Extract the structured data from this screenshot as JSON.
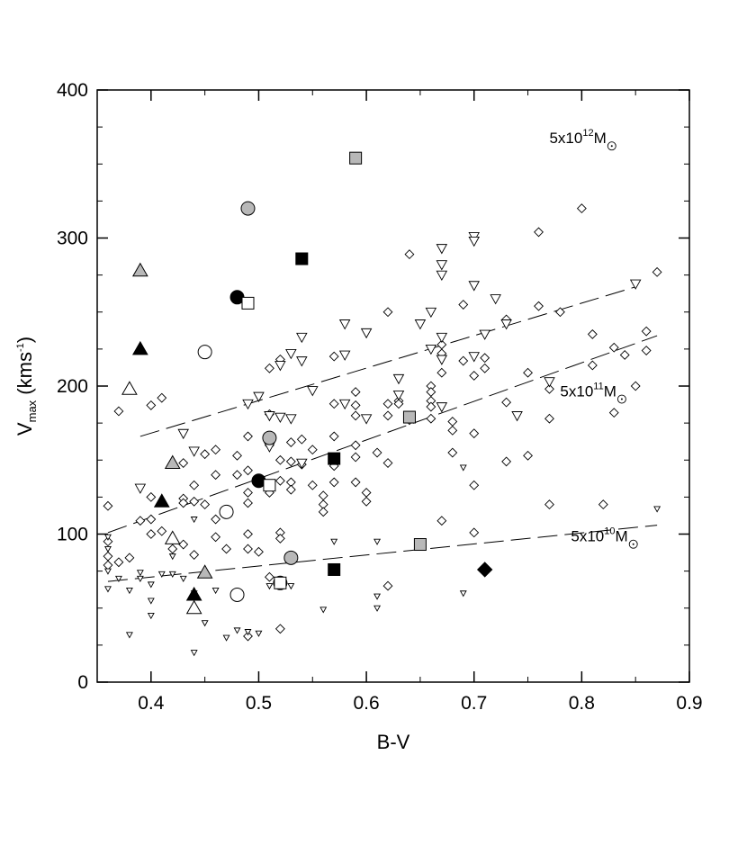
{
  "chart_data": {
    "type": "scatter",
    "xlabel": "B-V",
    "ylabel_main": "V",
    "ylabel_sub": "max",
    "ylabel_unit_pre": " (kms",
    "ylabel_unit_sup": "-1",
    "ylabel_unit_post": ")",
    "xlim": [
      0.35,
      0.9
    ],
    "ylim": [
      0,
      400
    ],
    "xticks": [
      0.4,
      0.5,
      0.6,
      0.7,
      0.8,
      0.9
    ],
    "xtick_labels": [
      "0.4",
      "0.5",
      "0.6",
      "0.7",
      "0.8",
      "0.9"
    ],
    "yticks": [
      0,
      100,
      200,
      300,
      400
    ],
    "ytick_labels": [
      "0",
      "100",
      "200",
      "300",
      "400"
    ],
    "grid": false,
    "annotations": [
      {
        "pre": "5x10",
        "sup": "12",
        "post": "M",
        "x": 0.77,
        "y": 364
      },
      {
        "pre": "5x10",
        "sup": "11",
        "post": "M",
        "x": 0.78,
        "y": 193
      },
      {
        "pre": "5x10",
        "sup": "10",
        "post": "M",
        "x": 0.79,
        "y": 95
      }
    ],
    "lines": [
      {
        "style": "dashed",
        "points": [
          [
            0.39,
            166
          ],
          [
            0.85,
            267
          ]
        ]
      },
      {
        "style": "dashed",
        "points": [
          [
            0.36,
            101
          ],
          [
            0.87,
            234
          ]
        ]
      },
      {
        "style": "dashed",
        "points": [
          [
            0.36,
            68
          ],
          [
            0.87,
            106
          ]
        ]
      }
    ],
    "series": [
      {
        "marker": "diamond-open",
        "points": [
          [
            0.36,
            119
          ],
          [
            0.37,
            183
          ],
          [
            0.36,
            95
          ],
          [
            0.37,
            81
          ],
          [
            0.36,
            79
          ],
          [
            0.36,
            85
          ],
          [
            0.38,
            84
          ],
          [
            0.39,
            109
          ],
          [
            0.4,
            187
          ],
          [
            0.41,
            192
          ],
          [
            0.4,
            125
          ],
          [
            0.4,
            110
          ],
          [
            0.41,
            102
          ],
          [
            0.4,
            100
          ],
          [
            0.42,
            90
          ],
          [
            0.43,
            148
          ],
          [
            0.43,
            124
          ],
          [
            0.43,
            121
          ],
          [
            0.44,
            133
          ],
          [
            0.44,
            122
          ],
          [
            0.43,
            93
          ],
          [
            0.44,
            86
          ],
          [
            0.45,
            154
          ],
          [
            0.46,
            157
          ],
          [
            0.46,
            140
          ],
          [
            0.45,
            120
          ],
          [
            0.46,
            110
          ],
          [
            0.46,
            98
          ],
          [
            0.47,
            90
          ],
          [
            0.48,
            153
          ],
          [
            0.48,
            140
          ],
          [
            0.49,
            166
          ],
          [
            0.49,
            143
          ],
          [
            0.49,
            128
          ],
          [
            0.49,
            121
          ],
          [
            0.49,
            100
          ],
          [
            0.49,
            90
          ],
          [
            0.5,
            88
          ],
          [
            0.49,
            31
          ],
          [
            0.51,
            212
          ],
          [
            0.52,
            218
          ],
          [
            0.51,
            181
          ],
          [
            0.51,
            160
          ],
          [
            0.52,
            150
          ],
          [
            0.52,
            136
          ],
          [
            0.51,
            128
          ],
          [
            0.52,
            101
          ],
          [
            0.52,
            97
          ],
          [
            0.51,
            71
          ],
          [
            0.52,
            36
          ],
          [
            0.53,
            162
          ],
          [
            0.53,
            149
          ],
          [
            0.53,
            135
          ],
          [
            0.53,
            130
          ],
          [
            0.54,
            164
          ],
          [
            0.54,
            147
          ],
          [
            0.55,
            157
          ],
          [
            0.55,
            133
          ],
          [
            0.56,
            126
          ],
          [
            0.56,
            120
          ],
          [
            0.56,
            115
          ],
          [
            0.57,
            220
          ],
          [
            0.57,
            188
          ],
          [
            0.57,
            166
          ],
          [
            0.57,
            146
          ],
          [
            0.57,
            135
          ],
          [
            0.59,
            196
          ],
          [
            0.59,
            187
          ],
          [
            0.59,
            180
          ],
          [
            0.59,
            160
          ],
          [
            0.59,
            152
          ],
          [
            0.59,
            135
          ],
          [
            0.6,
            128
          ],
          [
            0.6,
            122
          ],
          [
            0.61,
            155
          ],
          [
            0.62,
            250
          ],
          [
            0.62,
            188
          ],
          [
            0.62,
            180
          ],
          [
            0.62,
            148
          ],
          [
            0.62,
            65
          ],
          [
            0.63,
            190
          ],
          [
            0.63,
            188
          ],
          [
            0.64,
            289
          ],
          [
            0.64,
            177
          ],
          [
            0.66,
            200
          ],
          [
            0.66,
            196
          ],
          [
            0.66,
            190
          ],
          [
            0.66,
            186
          ],
          [
            0.66,
            178
          ],
          [
            0.67,
            228
          ],
          [
            0.67,
            222
          ],
          [
            0.67,
            209
          ],
          [
            0.67,
            109
          ],
          [
            0.68,
            176
          ],
          [
            0.68,
            170
          ],
          [
            0.68,
            155
          ],
          [
            0.69,
            255
          ],
          [
            0.69,
            217
          ],
          [
            0.7,
            207
          ],
          [
            0.7,
            168
          ],
          [
            0.7,
            133
          ],
          [
            0.7,
            101
          ],
          [
            0.71,
            219
          ],
          [
            0.71,
            212
          ],
          [
            0.73,
            245
          ],
          [
            0.73,
            189
          ],
          [
            0.73,
            149
          ],
          [
            0.75,
            209
          ],
          [
            0.75,
            153
          ],
          [
            0.76,
            304
          ],
          [
            0.76,
            254
          ],
          [
            0.77,
            198
          ],
          [
            0.77,
            178
          ],
          [
            0.77,
            120
          ],
          [
            0.78,
            250
          ],
          [
            0.8,
            320
          ],
          [
            0.81,
            235
          ],
          [
            0.81,
            214
          ],
          [
            0.82,
            120
          ],
          [
            0.83,
            226
          ],
          [
            0.83,
            182
          ],
          [
            0.84,
            221
          ],
          [
            0.85,
            200
          ],
          [
            0.86,
            237
          ],
          [
            0.86,
            224
          ],
          [
            0.87,
            277
          ]
        ]
      },
      {
        "marker": "triangle-down-small",
        "points": [
          [
            0.36,
            98
          ],
          [
            0.36,
            90
          ],
          [
            0.36,
            75
          ],
          [
            0.36,
            63
          ],
          [
            0.37,
            70
          ],
          [
            0.38,
            32
          ],
          [
            0.38,
            62
          ],
          [
            0.39,
            74
          ],
          [
            0.39,
            70
          ],
          [
            0.4,
            66
          ],
          [
            0.4,
            55
          ],
          [
            0.4,
            45
          ],
          [
            0.41,
            73
          ],
          [
            0.42,
            85
          ],
          [
            0.42,
            73
          ],
          [
            0.43,
            70
          ],
          [
            0.44,
            110
          ],
          [
            0.44,
            60
          ],
          [
            0.44,
            20
          ],
          [
            0.45,
            40
          ],
          [
            0.46,
            62
          ],
          [
            0.47,
            30
          ],
          [
            0.48,
            35
          ],
          [
            0.49,
            34
          ],
          [
            0.5,
            33
          ],
          [
            0.51,
            65
          ],
          [
            0.53,
            65
          ],
          [
            0.56,
            49
          ],
          [
            0.57,
            95
          ],
          [
            0.61,
            95
          ],
          [
            0.61,
            58
          ],
          [
            0.61,
            50
          ],
          [
            0.69,
            60
          ],
          [
            0.69,
            145
          ],
          [
            0.87,
            117
          ]
        ]
      },
      {
        "marker": "triangle-down-large",
        "points": [
          [
            0.39,
            131
          ],
          [
            0.43,
            168
          ],
          [
            0.44,
            156
          ],
          [
            0.49,
            188
          ],
          [
            0.5,
            193
          ],
          [
            0.51,
            180
          ],
          [
            0.51,
            159
          ],
          [
            0.52,
            214
          ],
          [
            0.52,
            179
          ],
          [
            0.53,
            222
          ],
          [
            0.53,
            178
          ],
          [
            0.54,
            233
          ],
          [
            0.54,
            217
          ],
          [
            0.54,
            148
          ],
          [
            0.55,
            197
          ],
          [
            0.58,
            242
          ],
          [
            0.58,
            188
          ],
          [
            0.58,
            221
          ],
          [
            0.6,
            236
          ],
          [
            0.6,
            178
          ],
          [
            0.63,
            205
          ],
          [
            0.63,
            194
          ],
          [
            0.65,
            242
          ],
          [
            0.66,
            250
          ],
          [
            0.66,
            225
          ],
          [
            0.67,
            293
          ],
          [
            0.67,
            282
          ],
          [
            0.67,
            275
          ],
          [
            0.67,
            233
          ],
          [
            0.67,
            218
          ],
          [
            0.67,
            186
          ],
          [
            0.7,
            301
          ],
          [
            0.7,
            298
          ],
          [
            0.7,
            268
          ],
          [
            0.7,
            220
          ],
          [
            0.71,
            235
          ],
          [
            0.72,
            259
          ],
          [
            0.73,
            242
          ],
          [
            0.74,
            180
          ],
          [
            0.77,
            203
          ],
          [
            0.85,
            269
          ]
        ]
      },
      {
        "marker": "circle-open",
        "points": [
          [
            0.45,
            223
          ],
          [
            0.47,
            115
          ],
          [
            0.48,
            59
          ]
        ]
      },
      {
        "marker": "circle-gray",
        "points": [
          [
            0.49,
            320
          ],
          [
            0.51,
            165
          ],
          [
            0.53,
            84
          ]
        ]
      },
      {
        "marker": "circle-filled",
        "points": [
          [
            0.48,
            260
          ],
          [
            0.5,
            136
          ],
          [
            0.52,
            67
          ]
        ]
      },
      {
        "marker": "square-open",
        "points": [
          [
            0.49,
            256
          ],
          [
            0.51,
            133
          ],
          [
            0.52,
            67
          ]
        ]
      },
      {
        "marker": "square-gray",
        "points": [
          [
            0.59,
            354
          ],
          [
            0.64,
            179
          ],
          [
            0.65,
            93
          ]
        ]
      },
      {
        "marker": "square-filled",
        "points": [
          [
            0.54,
            286
          ],
          [
            0.57,
            151
          ],
          [
            0.57,
            76
          ]
        ]
      },
      {
        "marker": "triangle-up-open",
        "points": [
          [
            0.38,
            198
          ],
          [
            0.42,
            97
          ],
          [
            0.44,
            50
          ]
        ]
      },
      {
        "marker": "triangle-up-gray",
        "points": [
          [
            0.39,
            278
          ],
          [
            0.42,
            148
          ],
          [
            0.45,
            74
          ]
        ]
      },
      {
        "marker": "triangle-up-filled",
        "points": [
          [
            0.39,
            225
          ],
          [
            0.41,
            122
          ],
          [
            0.44,
            59
          ]
        ]
      },
      {
        "marker": "diamond-filled",
        "points": [
          [
            0.71,
            76
          ]
        ]
      }
    ]
  }
}
